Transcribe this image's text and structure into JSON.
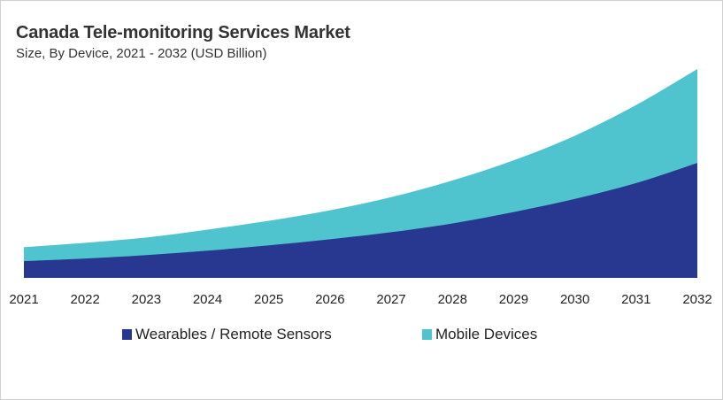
{
  "chart_data": {
    "type": "area",
    "stacked": true,
    "title": "Canada Tele-monitoring Services Market",
    "subtitle": "Size, By Device, 2021 - 2032 (USD Billion)",
    "x": [
      "2021",
      "2022",
      "2023",
      "2024",
      "2025",
      "2026",
      "2027",
      "2028",
      "2029",
      "2030",
      "2031",
      "2032"
    ],
    "series": [
      {
        "name": "Wearables / Remote Sensors",
        "color": "#283891",
        "values": [
          1.9,
          2.2,
          2.6,
          3.1,
          3.7,
          4.4,
          5.2,
          6.2,
          7.5,
          9.0,
          10.8,
          13.1
        ]
      },
      {
        "name": "Mobile Devices",
        "color": "#4fc4cf",
        "values": [
          1.6,
          1.8,
          2.0,
          2.4,
          2.8,
          3.3,
          4.0,
          4.9,
          5.9,
          7.2,
          8.9,
          10.7
        ]
      }
    ],
    "ylim": [
      0,
      24
    ],
    "y_axis_shown": false,
    "grid": false,
    "legend_position": "bottom"
  }
}
